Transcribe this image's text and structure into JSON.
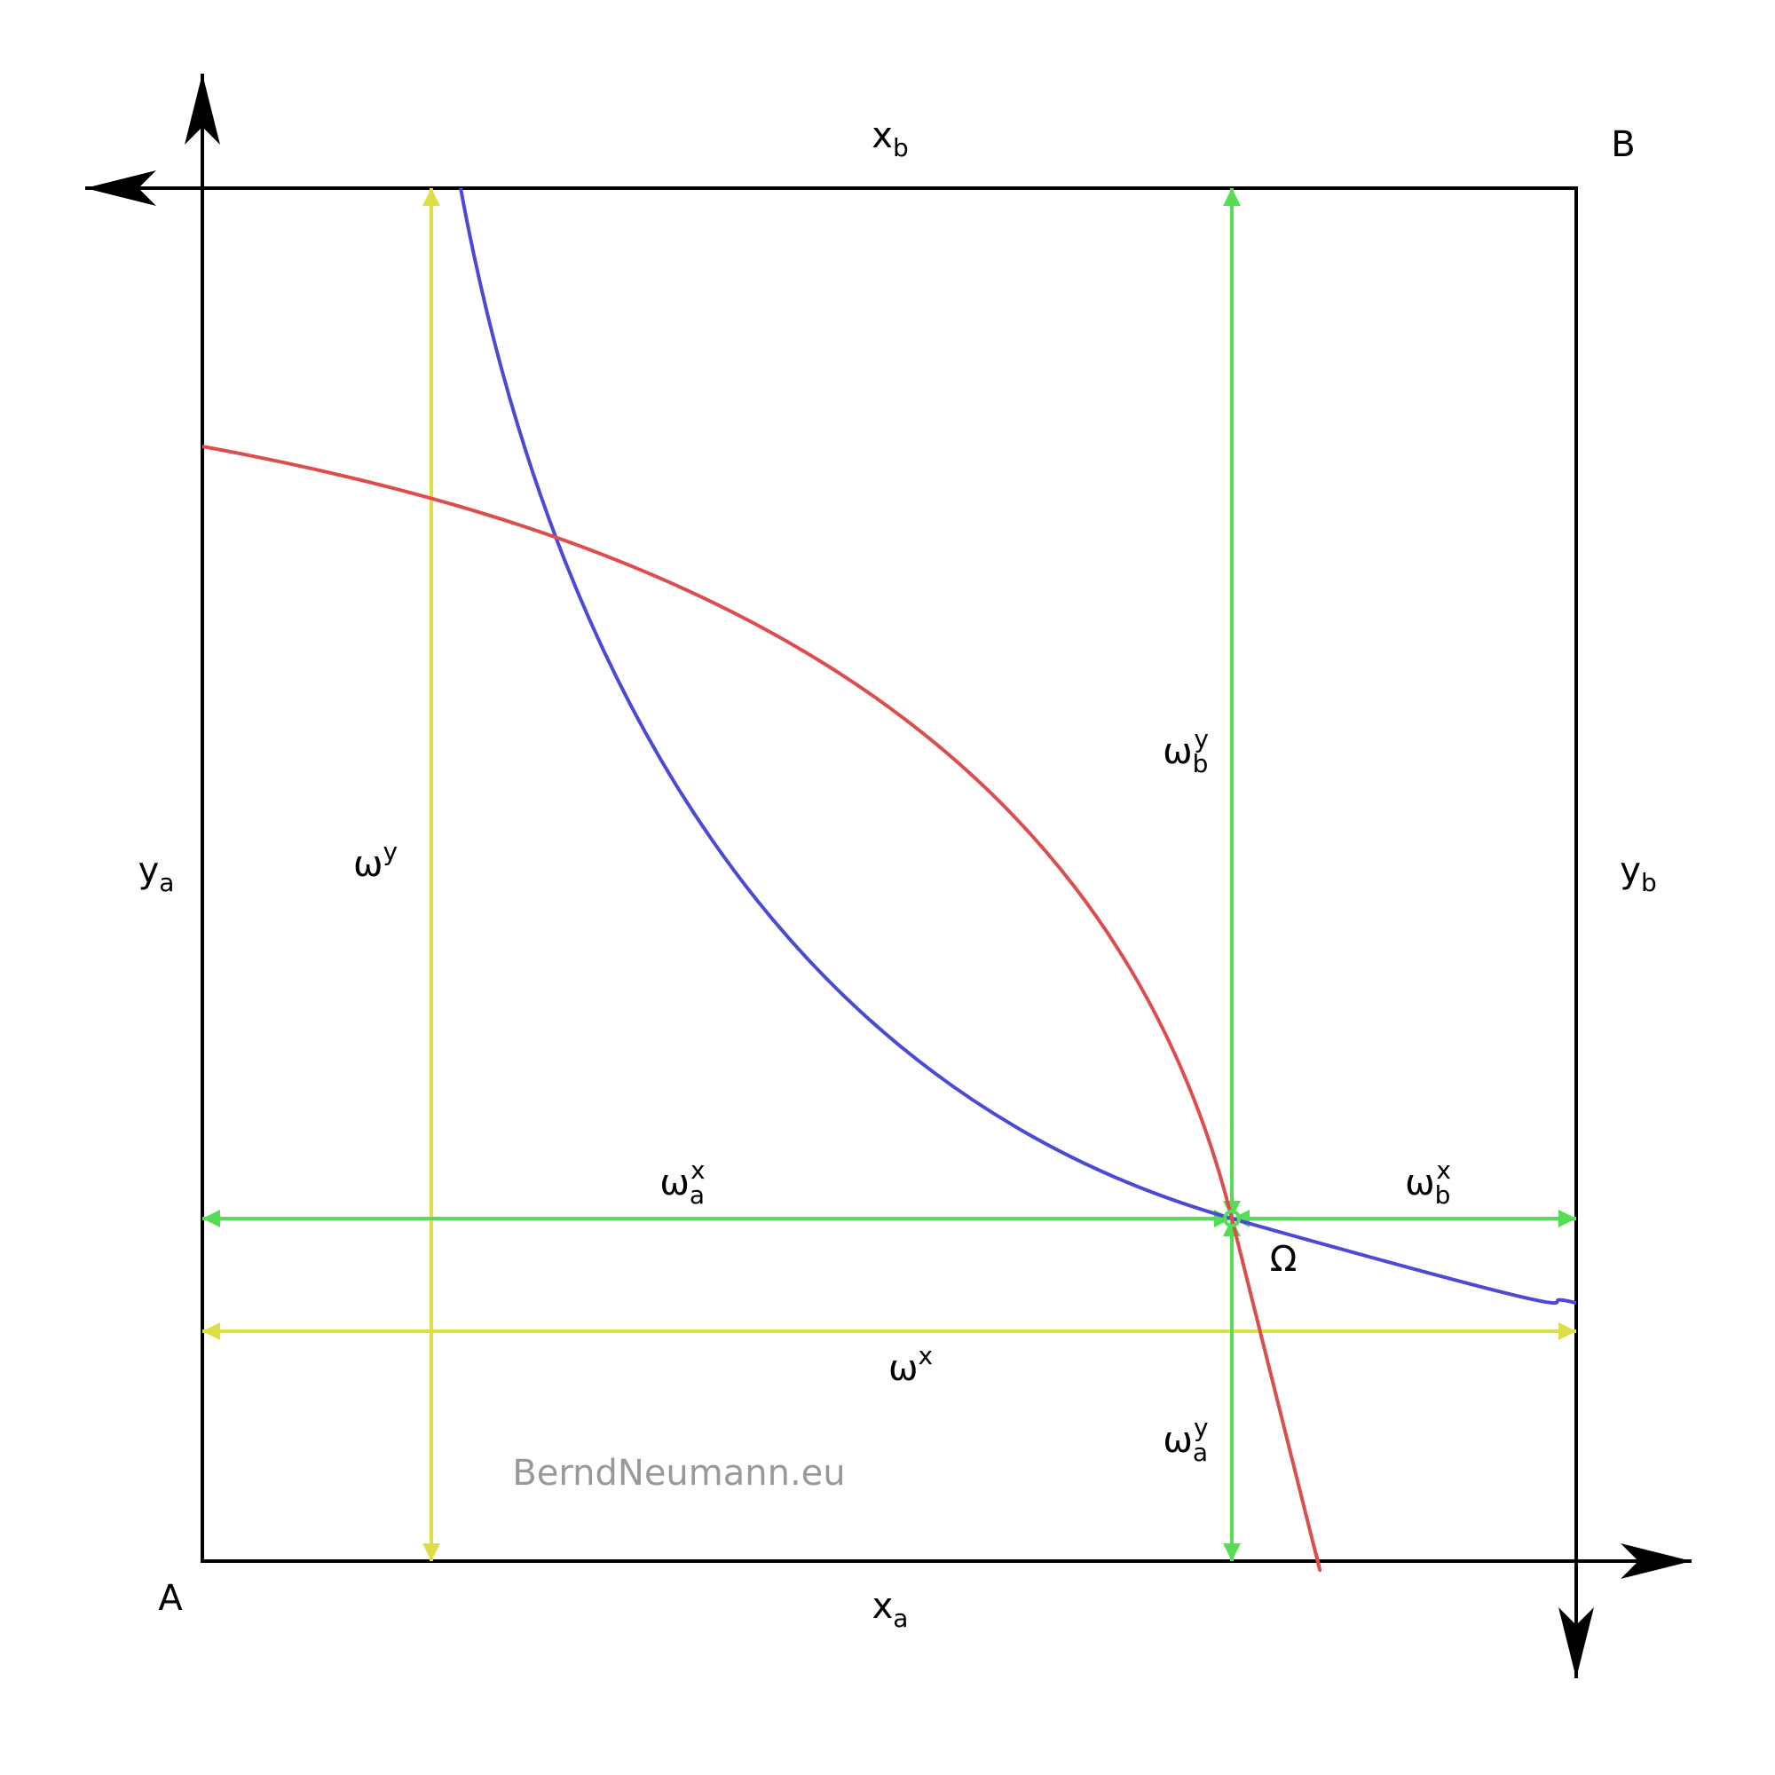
{
  "labels": {
    "x_b": {
      "base": "x",
      "sub": "b"
    },
    "B": "B",
    "y_a": {
      "base": "y",
      "sub": "a"
    },
    "y_b": {
      "base": "y",
      "sub": "b"
    },
    "A": "A",
    "x_a": {
      "base": "x",
      "sub": "a"
    },
    "omega_y": {
      "base": "ω",
      "sup": "y"
    },
    "omega_b_y": {
      "base": "ω",
      "sub": "b",
      "sup": "y"
    },
    "omega_a_x": {
      "base": "ω",
      "sub": "a",
      "sup": "x"
    },
    "omega_b_x": {
      "base": "ω",
      "sub": "b",
      "sup": "x"
    },
    "Omega": "Ω",
    "omega_x": {
      "base": "ω",
      "sup": "x"
    },
    "omega_a_y": {
      "base": "ω",
      "sub": "a",
      "sup": "y"
    }
  },
  "watermark": "BerndNeumann.eu"
}
